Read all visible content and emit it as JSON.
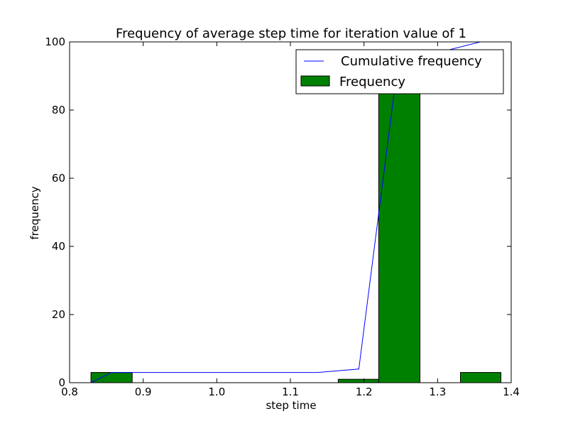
{
  "chart_data": {
    "type": "bar",
    "title": "Frequency of average step time for iteration value of 1",
    "xlabel": "step time",
    "ylabel": "frequency",
    "xlim": [
      0.8,
      1.4
    ],
    "ylim": [
      0,
      100
    ],
    "xticks": [
      "0.8",
      "0.9",
      "1.0",
      "1.1",
      "1.2",
      "1.3",
      "1.4"
    ],
    "yticks": [
      "0",
      "20",
      "40",
      "60",
      "80",
      "100"
    ],
    "grid": false,
    "legend_position": "top-right",
    "histogram": {
      "name": "Frequency",
      "color": "#008000",
      "bins": [
        {
          "start": 0.829,
          "end": 0.885,
          "count": 3
        },
        {
          "start": 0.885,
          "end": 0.94,
          "count": 0
        },
        {
          "start": 0.94,
          "end": 0.995,
          "count": 0
        },
        {
          "start": 0.995,
          "end": 1.05,
          "count": 0
        },
        {
          "start": 1.05,
          "end": 1.105,
          "count": 0
        },
        {
          "start": 1.105,
          "end": 1.165,
          "count": 0
        },
        {
          "start": 1.165,
          "end": 1.22,
          "count": 1
        },
        {
          "start": 1.22,
          "end": 1.276,
          "count": 93
        },
        {
          "start": 1.276,
          "end": 1.331,
          "count": 0
        },
        {
          "start": 1.331,
          "end": 1.386,
          "count": 3
        }
      ]
    },
    "cumulative": {
      "name": "Cumulative frequency",
      "color": "#0000ff",
      "x": [
        0.829,
        0.857,
        0.885,
        0.94,
        0.995,
        1.05,
        1.105,
        1.137,
        1.193,
        1.248,
        1.303,
        1.358
      ],
      "y": [
        0,
        3,
        3,
        3,
        3,
        3,
        3,
        3,
        4,
        97,
        97,
        100
      ]
    }
  }
}
